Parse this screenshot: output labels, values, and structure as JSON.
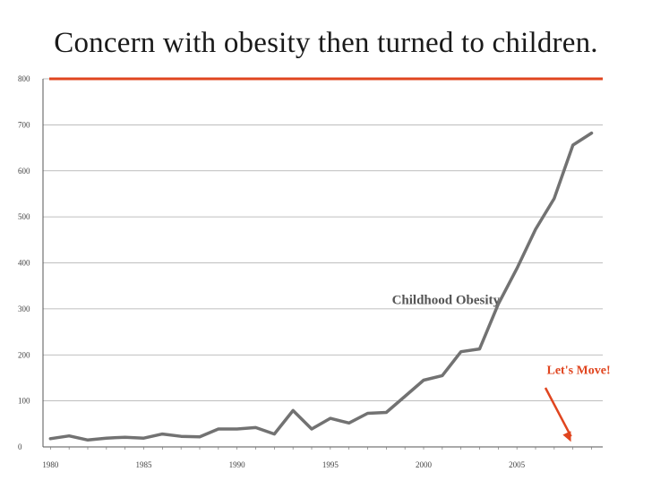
{
  "slide": {
    "title": "Concern with obesity then turned to children."
  },
  "colors": {
    "series_line": "#727272",
    "top_line": "#e0451f",
    "annotation": "#e0451f",
    "grid": "#a9a9a9"
  },
  "chart_data": {
    "type": "line",
    "title": "Concern with obesity then turned to children.",
    "xlabel": "",
    "ylabel": "",
    "xlim": [
      1979.6,
      2009.6
    ],
    "ylim": [
      0,
      800
    ],
    "grid": true,
    "x_ticks": [
      1980,
      1985,
      1990,
      1995,
      2000,
      2005
    ],
    "y_ticks": [
      0,
      100,
      200,
      300,
      400,
      500,
      600,
      700,
      800
    ],
    "series": [
      {
        "name": "Childhood Obesity",
        "x": [
          1980,
          1981,
          1982,
          1983,
          1984,
          1985,
          1986,
          1987,
          1988,
          1989,
          1990,
          1991,
          1992,
          1993,
          1994,
          1995,
          1996,
          1997,
          1998,
          1999,
          2000,
          2001,
          2002,
          2003,
          2004,
          2005,
          2006,
          2007,
          2008,
          2009
        ],
        "values": [
          18,
          24,
          15,
          19,
          21,
          19,
          28,
          23,
          22,
          39,
          39,
          42,
          28,
          79,
          39,
          62,
          52,
          73,
          75,
          110,
          145,
          155,
          207,
          213,
          310,
          388,
          473,
          540,
          656,
          682
        ]
      }
    ],
    "reference_line": {
      "y": 800
    },
    "annotations": [
      {
        "text": "Childhood Obesity",
        "x": 1998.3,
        "y": 320
      },
      {
        "text": "Let's Move!",
        "x": 2006.6,
        "y": 168,
        "arrow_to": [
          2007.9,
          11
        ]
      }
    ]
  }
}
